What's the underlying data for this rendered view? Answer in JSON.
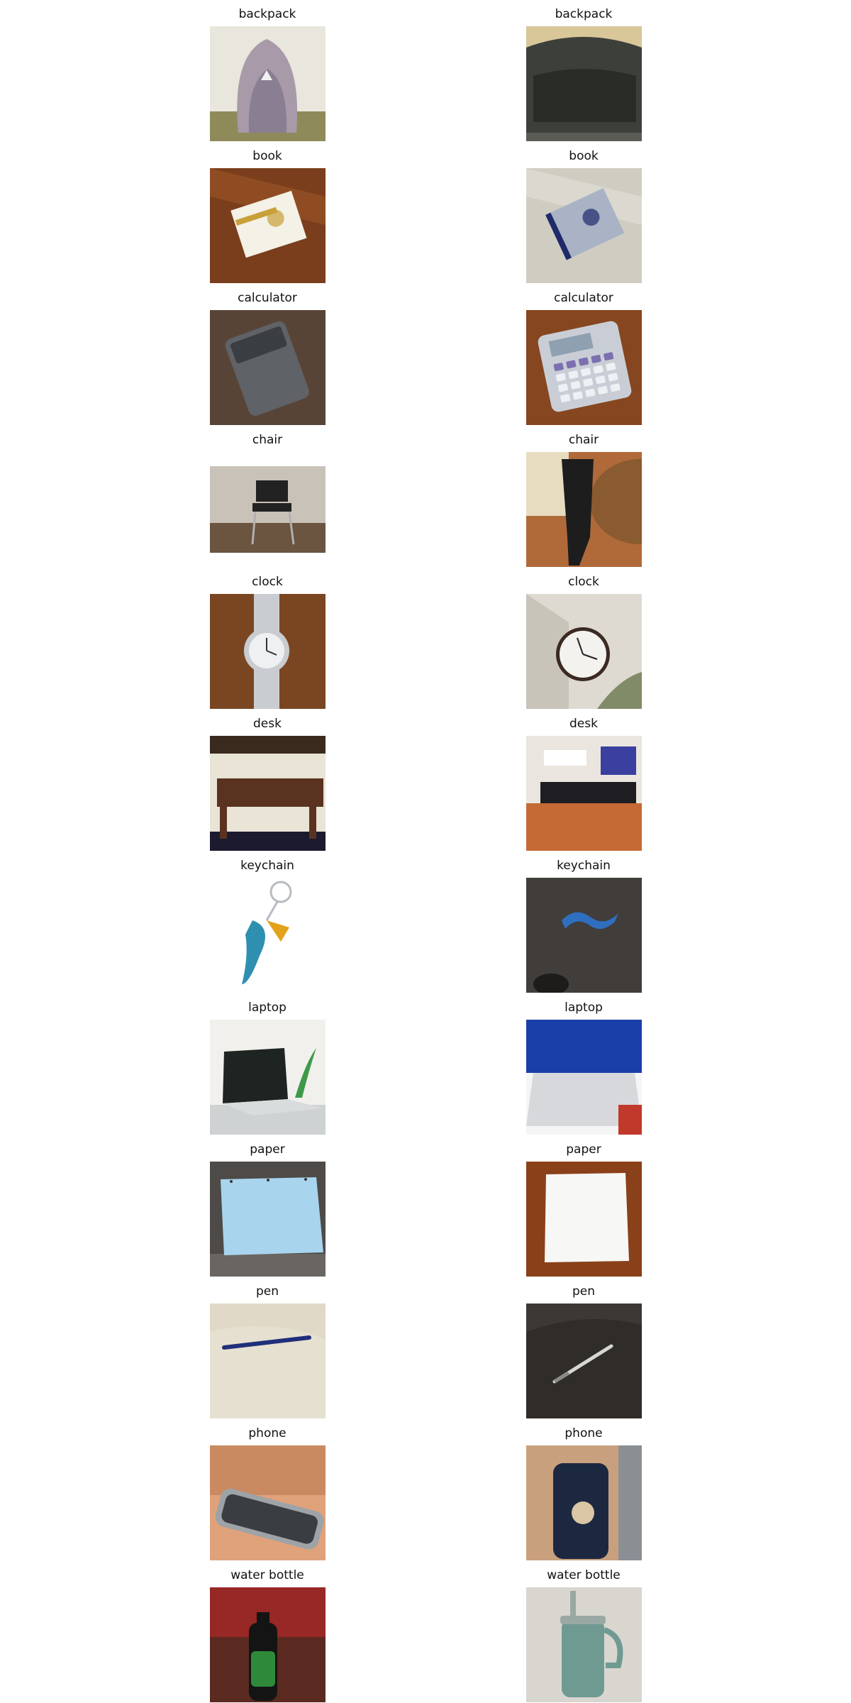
{
  "panels": [
    {
      "label": "backpack",
      "image": "gray backpack on a couch",
      "icon": "backpack-image",
      "palette": [
        "#e9e7dd",
        "#a89aa8",
        "#8a7f92",
        "#8f8a5a"
      ]
    },
    {
      "label": "backpack",
      "image": "dark backpack close-up",
      "icon": "backpack-image",
      "palette": [
        "#d9c79a",
        "#3d3f3a",
        "#2a2c28",
        "#5a5c55"
      ]
    },
    {
      "label": "book",
      "image": "book on wooden floor",
      "icon": "book-image",
      "palette": [
        "#7a3e1c",
        "#a35a2a",
        "#f4f1e6",
        "#c8a03a"
      ]
    },
    {
      "label": "book",
      "image": "book on white sheet",
      "icon": "book-image",
      "palette": [
        "#cfcdc2",
        "#e8e6dc",
        "#a9b3c5",
        "#1f2a6b"
      ]
    },
    {
      "label": "calculator",
      "image": "dark calculator on table",
      "icon": "calculator-image",
      "palette": [
        "#4a3a2e",
        "#5f6266",
        "#3a3d41",
        "#6e5544"
      ]
    },
    {
      "label": "calculator",
      "image": "desk calculator on wood",
      "icon": "calculator-image",
      "palette": [
        "#6a3a1a",
        "#c9ced6",
        "#8fa0b0",
        "#b25a2a"
      ]
    },
    {
      "label": "chair",
      "image": "black chair on floor",
      "icon": "chair-image",
      "palette": [
        "#e6e0d8",
        "#6b5440",
        "#222222",
        "#c9c2b8"
      ]
    },
    {
      "label": "chair",
      "image": "black chair by table",
      "icon": "chair-image",
      "palette": [
        "#b06a3a",
        "#1d1d1d",
        "#8a5a30",
        "#e8dcc0"
      ]
    },
    {
      "label": "clock",
      "image": "wrist watch on wood",
      "icon": "clock-image",
      "palette": [
        "#6b3c1c",
        "#8a5028",
        "#c9ccd0",
        "#eef0f2"
      ]
    },
    {
      "label": "clock",
      "image": "wall clock",
      "icon": "clock-image",
      "palette": [
        "#dedad2",
        "#c9c4ba",
        "#3a2a22",
        "#f4f2ee"
      ]
    },
    {
      "label": "desk",
      "image": "wooden desk",
      "icon": "desk-image",
      "palette": [
        "#3a2a1e",
        "#5a3320",
        "#e9e4d6",
        "#1b1a2e"
      ]
    },
    {
      "label": "desk",
      "image": "desk with laptop",
      "icon": "desk-image",
      "palette": [
        "#eae6df",
        "#c56a35",
        "#1e1e22",
        "#3a3fa0"
      ]
    },
    {
      "label": "keychain",
      "image": "bird keychain",
      "icon": "keychain-image",
      "palette": [
        "#ffffff",
        "#b7bcc2",
        "#2f8fb0",
        "#e2a21a"
      ]
    },
    {
      "label": "keychain",
      "image": "lanyard on carpet",
      "icon": "keychain-image",
      "palette": [
        "#3a3836",
        "#4a4744",
        "#2f6fc0",
        "#1d1c1b"
      ]
    },
    {
      "label": "laptop",
      "image": "open laptop",
      "icon": "laptop-image",
      "palette": [
        "#f1f0ec",
        "#1e2421",
        "#cfd2d2",
        "#3e9a4a"
      ]
    },
    {
      "label": "laptop",
      "image": "silver laptop",
      "icon": "laptop-image",
      "palette": [
        "#1b3fa8",
        "#d6d8dc",
        "#f5f5f5",
        "#c0392b"
      ]
    },
    {
      "label": "paper",
      "image": "blue paper",
      "icon": "paper-image",
      "palette": [
        "#4e4a47",
        "#a8d4ee",
        "#9cc8e4",
        "#6a6561"
      ]
    },
    {
      "label": "paper",
      "image": "white paper on wood",
      "icon": "paper-image",
      "palette": [
        "#7a3816",
        "#f7f7f5",
        "#a24e1e",
        "#eeeeec"
      ]
    },
    {
      "label": "pen",
      "image": "blue pen on fabric",
      "icon": "pen-image",
      "palette": [
        "#e0d9c8",
        "#d3cab6",
        "#1f2f7a",
        "#eae4d6"
      ]
    },
    {
      "label": "pen",
      "image": "silver pen on dark surface",
      "icon": "pen-image",
      "palette": [
        "#2f2c29",
        "#3c3935",
        "#d6d6d2",
        "#8a8a84"
      ]
    },
    {
      "label": "phone",
      "image": "phone on table",
      "icon": "phone-image",
      "palette": [
        "#e0a27a",
        "#c98a62",
        "#9ea3a8",
        "#3a3d42"
      ]
    },
    {
      "label": "phone",
      "image": "phone in hand",
      "icon": "phone-image",
      "palette": [
        "#6a4a3a",
        "#1c2840",
        "#d9c6a4",
        "#c9a07e"
      ]
    },
    {
      "label": "water bottle",
      "image": "green water bottle",
      "icon": "water-bottle-image",
      "palette": [
        "#5a2a20",
        "#c0282a",
        "#2e8a3a",
        "#141414"
      ]
    },
    {
      "label": "water bottle",
      "image": "teal tumbler",
      "icon": "water-bottle-image",
      "palette": [
        "#d9d6d0",
        "#6f9a92",
        "#c8c4bd",
        "#9aa8a4"
      ]
    }
  ]
}
